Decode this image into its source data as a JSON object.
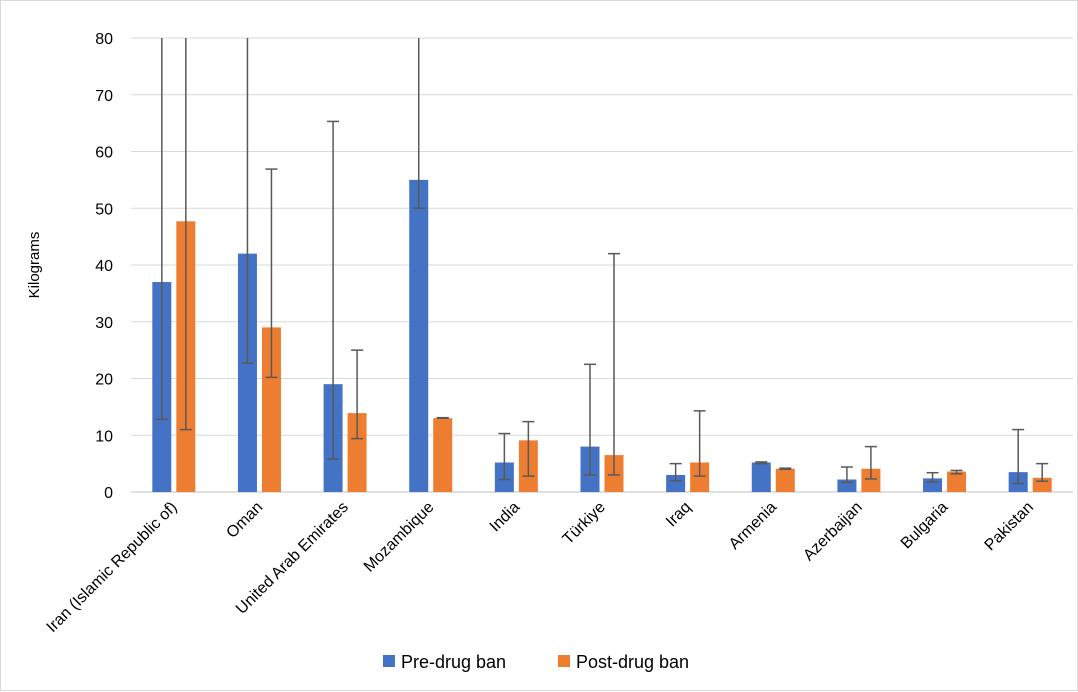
{
  "chart_data": {
    "type": "bar",
    "ylabel": "Kilograms",
    "ylim": [
      0,
      80
    ],
    "yticks": [
      0,
      10,
      20,
      30,
      40,
      50,
      60,
      70,
      80
    ],
    "grid": true,
    "legend_position": "bottom",
    "categories": [
      "Iran (Islamic Republic of)",
      "Oman",
      "United Arab Emirates",
      "Mozambique",
      "India",
      "Türkiye",
      "Iraq",
      "Armenia",
      "Azerbaijan",
      "Bulgaria",
      "Pakistan"
    ],
    "series": [
      {
        "name": "Pre-drug ban",
        "color": "#4472c4",
        "values": [
          37,
          42,
          19,
          55,
          5.2,
          8,
          3,
          5.2,
          2.2,
          2.4,
          3.5
        ],
        "error_low": [
          12.8,
          22.7,
          5.8,
          50,
          2.2,
          3,
          2,
          5.0,
          1.7,
          1.8,
          1.5
        ],
        "error_high": [
          80,
          80,
          65.3,
          80,
          10.3,
          22.5,
          5,
          5.3,
          4.4,
          3.4,
          11
        ]
      },
      {
        "name": "Post-drug ban",
        "color": "#ed7d31",
        "values": [
          47.7,
          29,
          13.9,
          13,
          9.1,
          6.5,
          5.2,
          4.1,
          4.1,
          3.6,
          2.5
        ],
        "error_low": [
          11,
          20.2,
          9.4,
          13.0,
          2.8,
          3,
          2.8,
          4.0,
          2.3,
          3.2,
          1.9
        ],
        "error_high": [
          80,
          56.9,
          25,
          13.1,
          12.4,
          42,
          14.3,
          4.2,
          8,
          3.8,
          5
        ]
      }
    ]
  }
}
